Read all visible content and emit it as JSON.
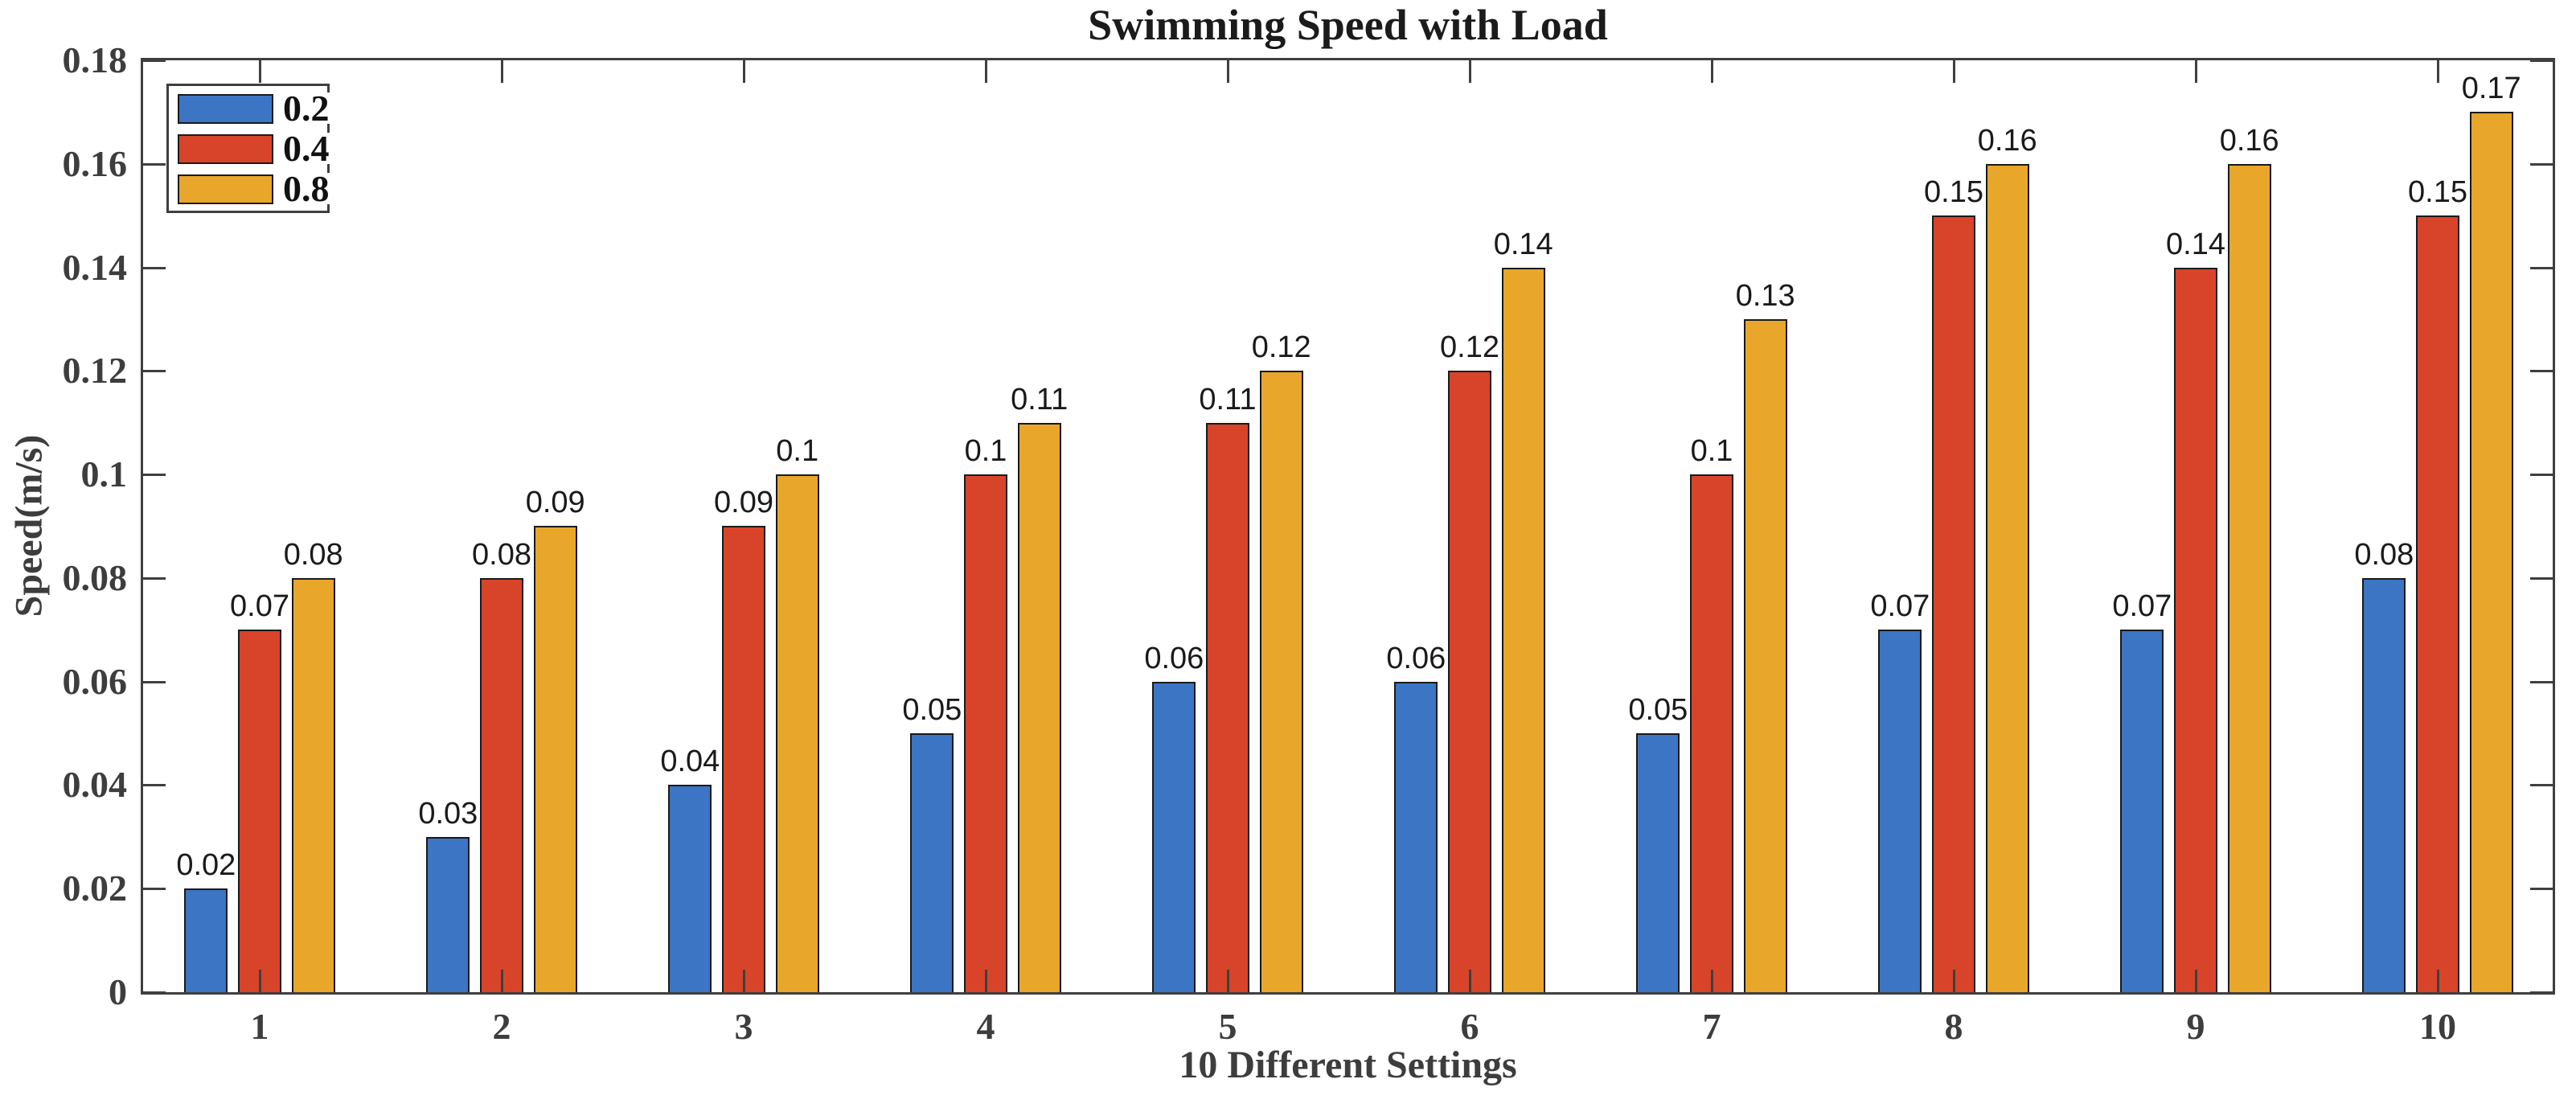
{
  "figure": {
    "background": "#ffffff"
  },
  "chart_data": {
    "type": "bar",
    "title": "Swimming Speed with Load",
    "xlabel": "10 Different Settings",
    "ylabel": "Speed(m/s)",
    "categories": [
      "1",
      "2",
      "3",
      "4",
      "5",
      "6",
      "7",
      "8",
      "9",
      "10"
    ],
    "series": [
      {
        "name": "0.2",
        "color": "#3b75c4",
        "values": [
          0.02,
          0.03,
          0.04,
          0.05,
          0.06,
          0.06,
          0.05,
          0.07,
          0.07,
          0.08
        ]
      },
      {
        "name": "0.4",
        "color": "#d8442a",
        "values": [
          0.07,
          0.08,
          0.09,
          0.1,
          0.11,
          0.12,
          0.1,
          0.15,
          0.14,
          0.15
        ]
      },
      {
        "name": "0.8",
        "color": "#e8a62b",
        "values": [
          0.08,
          0.09,
          0.1,
          0.11,
          0.12,
          0.14,
          0.13,
          0.16,
          0.16,
          0.17
        ]
      }
    ],
    "bar_value_labels": [
      "0.02",
      "0.03",
      "0.04",
      "0.05",
      "0.06",
      "0.06",
      "0.05",
      "0.07",
      "0.07",
      "0.08",
      "0.07",
      "0.08",
      "0.09",
      "0.1",
      "0.11",
      "0.12",
      "0.1",
      "0.15",
      "0.14",
      "0.15",
      "0.08",
      "0.09",
      "0.1",
      "0.11",
      "0.12",
      "0.14",
      "0.13",
      "0.16",
      "0.16",
      "0.17"
    ],
    "ylim": [
      0,
      0.18
    ],
    "ytick_step": 0.02,
    "ytick_labels": [
      "0",
      "0.02",
      "0.04",
      "0.06",
      "0.08",
      "0.1",
      "0.12",
      "0.14",
      "0.16",
      "0.18"
    ],
    "legend_position": "top-left",
    "legend_entries": [
      "0.2",
      "0.4",
      "0.8"
    ],
    "grid": false,
    "box": true,
    "tick_direction": "in"
  },
  "colors": {
    "axis": "#3f3f3f",
    "bar_edge": "#1a1a1a",
    "tick_label_text": "#3d3d3d",
    "title_text": "#1b1b1b",
    "value_label_text": "#1a1a1a"
  }
}
